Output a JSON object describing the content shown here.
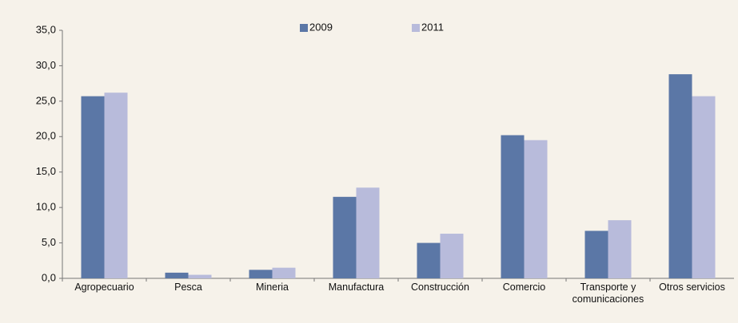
{
  "chart_data": {
    "type": "bar",
    "categories": [
      "Agropecuario",
      "Pesca",
      "Mineria",
      "Manufactura",
      "Construcción",
      "Comercio",
      "Transporte y comunicaciones",
      "Otros servicios"
    ],
    "series": [
      {
        "name": "2009",
        "color": "#5b77a6",
        "values": [
          25.7,
          0.8,
          1.2,
          11.5,
          5.0,
          20.2,
          6.7,
          28.8
        ]
      },
      {
        "name": "2011",
        "color": "#b8bbdb",
        "values": [
          26.2,
          0.5,
          1.5,
          12.8,
          6.3,
          19.5,
          8.2,
          25.7
        ]
      }
    ],
    "ylim": [
      0,
      35
    ],
    "yticks": [
      {
        "value": 0,
        "label": "0,0"
      },
      {
        "value": 5,
        "label": "5,0"
      },
      {
        "value": 10,
        "label": "10,0"
      },
      {
        "value": 15,
        "label": "15,0"
      },
      {
        "value": 20,
        "label": "20,0"
      },
      {
        "value": 25,
        "label": "25,0"
      },
      {
        "value": 30,
        "label": "30,0"
      },
      {
        "value": 35,
        "label": "35,0"
      }
    ],
    "grid": false,
    "legend": "top"
  }
}
